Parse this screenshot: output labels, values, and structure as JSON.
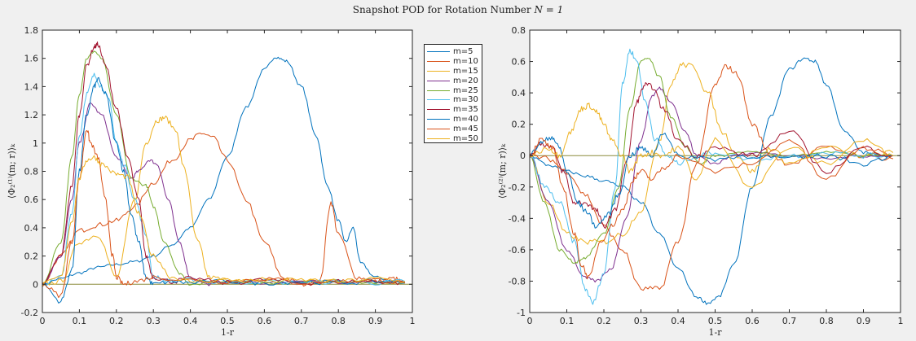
{
  "title": "Snapshot POD for Rotation Number N = 1",
  "title_parts": {
    "prefix": "Snapshot POD for Rotation Number ",
    "math": "N = 1"
  },
  "legend": [
    {
      "label": "m=5",
      "color": "#0072BD"
    },
    {
      "label": "m=10",
      "color": "#D95319"
    },
    {
      "label": "m=15",
      "color": "#EDB120"
    },
    {
      "label": "m=20",
      "color": "#7E2F8E"
    },
    {
      "label": "m=25",
      "color": "#77AC30"
    },
    {
      "label": "m=30",
      "color": "#4DBEEE"
    },
    {
      "label": "m=35",
      "color": "#A2142F"
    },
    {
      "label": "m=40",
      "color": "#0072BD"
    },
    {
      "label": "m=45",
      "color": "#D95319"
    },
    {
      "label": "m=50",
      "color": "#EDB120"
    }
  ],
  "chart_data": [
    {
      "type": "line",
      "title": "Snapshot POD for Rotation Number N = 1",
      "xlabel": "1-r",
      "ylabel": "⟨Φ₂⁽¹⁾(m; r)⟩ₖ",
      "xlim": [
        0,
        1
      ],
      "ylim": [
        -0.2,
        1.8
      ],
      "xticks": [
        "0",
        "0.1",
        "0.2",
        "0.3",
        "0.4",
        "0.5",
        "0.6",
        "0.7",
        "0.8",
        "0.9",
        "1"
      ],
      "yticks": [
        "-0.2",
        "0",
        "0.2",
        "0.4",
        "0.6",
        "0.8",
        "1",
        "1.2",
        "1.4",
        "1.6",
        "1.8"
      ],
      "grid": false,
      "legend_position": "outside-right",
      "series": [
        {
          "name": "m=5",
          "x": [
            0,
            0.05,
            0.1,
            0.15,
            0.2,
            0.25,
            0.3,
            0.35,
            0.4,
            0.45,
            0.5,
            0.55,
            0.6,
            0.63,
            0.66,
            0.7,
            0.74,
            0.77,
            0.8,
            0.82,
            0.84,
            0.86,
            0.9,
            0.95,
            0.98
          ],
          "y": [
            0,
            0.04,
            0.08,
            0.12,
            0.14,
            0.16,
            0.2,
            0.28,
            0.4,
            0.6,
            0.9,
            1.25,
            1.52,
            1.61,
            1.58,
            1.4,
            1.05,
            0.7,
            0.45,
            0.3,
            0.4,
            0.15,
            0.05,
            0.02,
            0.01
          ]
        },
        {
          "name": "m=10",
          "x": [
            0,
            0.05,
            0.1,
            0.15,
            0.2,
            0.25,
            0.3,
            0.35,
            0.4,
            0.43,
            0.46,
            0.5,
            0.55,
            0.6,
            0.65,
            0.7,
            0.75,
            0.78,
            0.8,
            0.85,
            0.9,
            0.95,
            0.98
          ],
          "y": [
            0,
            0.2,
            0.38,
            0.42,
            0.45,
            0.55,
            0.72,
            0.88,
            1.02,
            1.07,
            1.04,
            0.88,
            0.6,
            0.3,
            0.05,
            0.0,
            0.02,
            0.58,
            0.35,
            0.05,
            0.02,
            0.04,
            0.01
          ]
        },
        {
          "name": "m=15",
          "x": [
            0,
            0.05,
            0.1,
            0.15,
            0.2,
            0.25,
            0.28,
            0.31,
            0.33,
            0.36,
            0.38,
            0.42,
            0.45,
            0.5,
            0.55,
            0.6,
            0.7,
            0.8,
            0.9,
            0.98
          ],
          "y": [
            0,
            0.02,
            0.3,
            0.35,
            0.05,
            0.6,
            1.0,
            1.16,
            1.18,
            1.1,
            0.85,
            0.3,
            0.05,
            0.03,
            0.02,
            0.04,
            0.02,
            0.03,
            0.02,
            0.02
          ]
        },
        {
          "name": "m=20",
          "x": [
            0,
            0.05,
            0.08,
            0.1,
            0.13,
            0.16,
            0.2,
            0.24,
            0.26,
            0.29,
            0.31,
            0.34,
            0.37,
            0.4,
            0.45,
            0.5,
            0.6,
            0.7,
            0.8,
            0.9,
            0.98
          ],
          "y": [
            0,
            0.2,
            0.6,
            1.0,
            1.28,
            1.2,
            0.9,
            0.75,
            0.8,
            0.88,
            0.85,
            0.6,
            0.3,
            0.05,
            0.0,
            0.02,
            0.01,
            0.02,
            0.01,
            0.02,
            0.01
          ]
        },
        {
          "name": "m=25",
          "x": [
            0,
            0.05,
            0.08,
            0.1,
            0.12,
            0.14,
            0.16,
            0.2,
            0.24,
            0.28,
            0.3,
            0.33,
            0.37,
            0.4,
            0.5,
            0.6,
            0.7,
            0.8,
            0.9,
            0.98
          ],
          "y": [
            0,
            0.3,
            0.9,
            1.35,
            1.6,
            1.65,
            1.6,
            1.2,
            0.75,
            0.7,
            0.55,
            0.3,
            0.08,
            0.0,
            0.02,
            0.01,
            0.01,
            0.02,
            0.01,
            0.01
          ]
        },
        {
          "name": "m=30",
          "x": [
            0,
            0.05,
            0.08,
            0.1,
            0.12,
            0.14,
            0.16,
            0.18,
            0.2,
            0.22,
            0.25,
            0.28,
            0.3,
            0.35,
            0.4,
            0.5,
            0.6,
            0.7,
            0.8,
            0.9,
            0.98
          ],
          "y": [
            0,
            0.05,
            0.5,
            1.05,
            1.35,
            1.48,
            1.4,
            1.3,
            1.0,
            0.85,
            0.6,
            0.35,
            0.05,
            0.02,
            0.03,
            0.01,
            0.02,
            0.01,
            0.02,
            0.01,
            0.02
          ]
        },
        {
          "name": "m=35",
          "x": [
            0,
            0.05,
            0.08,
            0.1,
            0.12,
            0.14,
            0.15,
            0.17,
            0.2,
            0.23,
            0.26,
            0.28,
            0.3,
            0.35,
            0.4,
            0.5,
            0.6,
            0.7,
            0.8,
            0.9,
            0.98
          ],
          "y": [
            0,
            0.2,
            0.7,
            1.2,
            1.55,
            1.68,
            1.7,
            1.55,
            1.25,
            0.9,
            0.6,
            0.2,
            0.05,
            0.02,
            0.04,
            0.01,
            0.03,
            0.01,
            0.02,
            0.02,
            0.01
          ]
        },
        {
          "name": "m=40",
          "x": [
            0,
            0.05,
            0.08,
            0.1,
            0.12,
            0.14,
            0.15,
            0.17,
            0.2,
            0.22,
            0.24,
            0.26,
            0.28,
            0.3,
            0.35,
            0.4,
            0.5,
            0.6,
            0.7,
            0.8,
            0.9,
            0.98
          ],
          "y": [
            0,
            -0.12,
            0.1,
            0.8,
            1.2,
            1.4,
            1.45,
            1.35,
            1.0,
            0.8,
            0.5,
            0.3,
            0.05,
            0.0,
            0.02,
            0.01,
            0.02,
            0.01,
            0.02,
            0.01,
            0.02,
            0.01
          ]
        },
        {
          "name": "m=45",
          "x": [
            0,
            0.05,
            0.08,
            0.1,
            0.12,
            0.13,
            0.15,
            0.17,
            0.19,
            0.2,
            0.22,
            0.25,
            0.3,
            0.4,
            0.5,
            0.6,
            0.7,
            0.8,
            0.9,
            0.98
          ],
          "y": [
            0,
            -0.08,
            0.3,
            0.75,
            1.1,
            1.0,
            0.9,
            0.6,
            0.2,
            0.05,
            0.0,
            0.02,
            0.05,
            0.03,
            0.02,
            0.04,
            0.01,
            0.02,
            0.03,
            0.01
          ]
        },
        {
          "name": "m=50",
          "x": [
            0,
            0.05,
            0.08,
            0.1,
            0.12,
            0.14,
            0.16,
            0.2,
            0.23,
            0.26,
            0.3,
            0.35,
            0.4,
            0.5,
            0.6,
            0.7,
            0.8,
            0.9,
            0.98
          ],
          "y": [
            0,
            0.05,
            0.45,
            0.75,
            0.88,
            0.9,
            0.85,
            0.78,
            0.76,
            0.5,
            0.2,
            0.05,
            0.02,
            0.03,
            0.02,
            0.03,
            0.02,
            0.04,
            0.02
          ]
        }
      ]
    },
    {
      "type": "line",
      "xlabel": "1-r",
      "ylabel": "⟨Φ₂⁽²⁾(m; r)⟩ₖ",
      "xlim": [
        0,
        1
      ],
      "ylim": [
        -1,
        0.8
      ],
      "xticks": [
        "0",
        "0.1",
        "0.2",
        "0.3",
        "0.4",
        "0.5",
        "0.6",
        "0.7",
        "0.8",
        "0.9",
        "1"
      ],
      "yticks": [
        "-1",
        "-0.8",
        "-0.6",
        "-0.4",
        "-0.2",
        "0",
        "0.2",
        "0.4",
        "0.6",
        "0.8"
      ],
      "grid": false,
      "series": [
        {
          "name": "m=5",
          "x": [
            0,
            0.05,
            0.1,
            0.15,
            0.2,
            0.25,
            0.3,
            0.35,
            0.4,
            0.45,
            0.48,
            0.51,
            0.55,
            0.6,
            0.65,
            0.7,
            0.74,
            0.77,
            0.8,
            0.85,
            0.9,
            0.95,
            0.98
          ],
          "y": [
            0,
            -0.06,
            -0.1,
            -0.13,
            -0.16,
            -0.2,
            -0.3,
            -0.5,
            -0.72,
            -0.9,
            -0.94,
            -0.9,
            -0.7,
            -0.2,
            0.25,
            0.55,
            0.62,
            0.6,
            0.45,
            0.15,
            0.02,
            0.0,
            0.0
          ]
        },
        {
          "name": "m=10",
          "x": [
            0,
            0.05,
            0.1,
            0.15,
            0.2,
            0.25,
            0.3,
            0.35,
            0.4,
            0.45,
            0.5,
            0.53,
            0.56,
            0.6,
            0.65,
            0.7,
            0.8,
            0.9,
            0.98
          ],
          "y": [
            0,
            -0.02,
            -0.1,
            -0.25,
            -0.45,
            -0.6,
            -0.85,
            -0.85,
            -0.55,
            -0.05,
            0.45,
            0.57,
            0.52,
            0.2,
            0.0,
            -0.05,
            0.05,
            0.0,
            -0.02
          ]
        },
        {
          "name": "m=15",
          "x": [
            0,
            0.05,
            0.1,
            0.15,
            0.2,
            0.25,
            0.3,
            0.35,
            0.38,
            0.41,
            0.44,
            0.48,
            0.52,
            0.56,
            0.6,
            0.65,
            0.7,
            0.8,
            0.9,
            0.98
          ],
          "y": [
            0,
            -0.3,
            -0.5,
            -0.55,
            -0.55,
            -0.5,
            -0.35,
            0.1,
            0.45,
            0.58,
            0.57,
            0.4,
            0.15,
            0.0,
            -0.1,
            0.05,
            -0.05,
            0.05,
            0.0,
            0.02
          ]
        },
        {
          "name": "m=20",
          "x": [
            0,
            0.05,
            0.1,
            0.15,
            0.18,
            0.22,
            0.26,
            0.3,
            0.33,
            0.35,
            0.38,
            0.42,
            0.45,
            0.5,
            0.55,
            0.6,
            0.7,
            0.8,
            0.9,
            0.98
          ],
          "y": [
            0,
            -0.3,
            -0.6,
            -0.78,
            -0.8,
            -0.72,
            -0.4,
            0.1,
            0.38,
            0.43,
            0.35,
            0.15,
            0.0,
            -0.05,
            0.0,
            0.02,
            0.0,
            -0.02,
            0.0,
            0.0
          ]
        },
        {
          "name": "m=25",
          "x": [
            0,
            0.04,
            0.08,
            0.12,
            0.15,
            0.2,
            0.24,
            0.27,
            0.3,
            0.32,
            0.35,
            0.38,
            0.42,
            0.46,
            0.5,
            0.6,
            0.7,
            0.8,
            0.9,
            0.98
          ],
          "y": [
            0,
            -0.3,
            -0.6,
            -0.68,
            -0.65,
            -0.5,
            -0.2,
            0.3,
            0.6,
            0.62,
            0.5,
            0.25,
            0.05,
            -0.05,
            0.0,
            0.02,
            0.0,
            0.02,
            0.0,
            0.0
          ]
        },
        {
          "name": "m=30",
          "x": [
            0,
            0.04,
            0.08,
            0.12,
            0.15,
            0.17,
            0.2,
            0.23,
            0.25,
            0.27,
            0.29,
            0.31,
            0.34,
            0.37,
            0.4,
            0.45,
            0.5,
            0.6,
            0.7,
            0.8,
            0.9,
            0.98
          ],
          "y": [
            0,
            -0.2,
            -0.3,
            -0.55,
            -0.85,
            -0.94,
            -0.75,
            -0.2,
            0.45,
            0.67,
            0.6,
            0.35,
            0.1,
            0.0,
            -0.05,
            0.0,
            0.02,
            -0.02,
            0.0,
            0.02,
            0.0,
            0.0
          ]
        },
        {
          "name": "m=35",
          "x": [
            0,
            0.03,
            0.06,
            0.09,
            0.12,
            0.15,
            0.18,
            0.2,
            0.23,
            0.26,
            0.29,
            0.31,
            0.33,
            0.36,
            0.4,
            0.45,
            0.5,
            0.6,
            0.7,
            0.8,
            0.9,
            0.98
          ],
          "y": [
            0,
            0.08,
            0.05,
            -0.1,
            -0.3,
            -0.3,
            -0.35,
            -0.45,
            -0.35,
            -0.05,
            0.35,
            0.45,
            0.44,
            0.3,
            0.1,
            0.0,
            0.05,
            0.0,
            0.15,
            -0.1,
            0.05,
            0.0
          ]
        },
        {
          "name": "m=40",
          "x": [
            0,
            0.03,
            0.06,
            0.08,
            0.1,
            0.13,
            0.15,
            0.18,
            0.21,
            0.24,
            0.27,
            0.3,
            0.33,
            0.36,
            0.4,
            0.5,
            0.6,
            0.7,
            0.8,
            0.9,
            0.98
          ],
          "y": [
            0,
            0.08,
            0.12,
            0.05,
            -0.1,
            -0.3,
            -0.35,
            -0.45,
            -0.38,
            -0.25,
            0.0,
            0.05,
            0.0,
            0.15,
            0.0,
            -0.02,
            0.0,
            -0.02,
            0.0,
            -0.05,
            0.0
          ]
        },
        {
          "name": "m=45",
          "x": [
            0,
            0.03,
            0.06,
            0.09,
            0.12,
            0.14,
            0.16,
            0.19,
            0.22,
            0.25,
            0.28,
            0.3,
            0.33,
            0.36,
            0.4,
            0.5,
            0.6,
            0.7,
            0.8,
            0.9,
            0.98
          ],
          "y": [
            0,
            0.1,
            0.05,
            -0.2,
            -0.5,
            -0.7,
            -0.78,
            -0.55,
            -0.45,
            -0.35,
            -0.15,
            -0.1,
            -0.15,
            -0.08,
            0.0,
            -0.1,
            -0.05,
            0.1,
            -0.15,
            0.05,
            0.0
          ]
        },
        {
          "name": "m=50",
          "x": [
            0,
            0.05,
            0.08,
            0.11,
            0.14,
            0.16,
            0.18,
            0.2,
            0.22,
            0.25,
            0.27,
            0.3,
            0.33,
            0.36,
            0.4,
            0.45,
            0.5,
            0.6,
            0.7,
            0.8,
            0.9,
            0.98
          ],
          "y": [
            0,
            0.05,
            0.0,
            0.15,
            0.3,
            0.32,
            0.28,
            0.2,
            0.1,
            0.0,
            -0.1,
            0.0,
            0.02,
            0.0,
            0.05,
            -0.15,
            0.1,
            -0.2,
            0.05,
            -0.05,
            0.1,
            0.0
          ]
        }
      ]
    }
  ]
}
